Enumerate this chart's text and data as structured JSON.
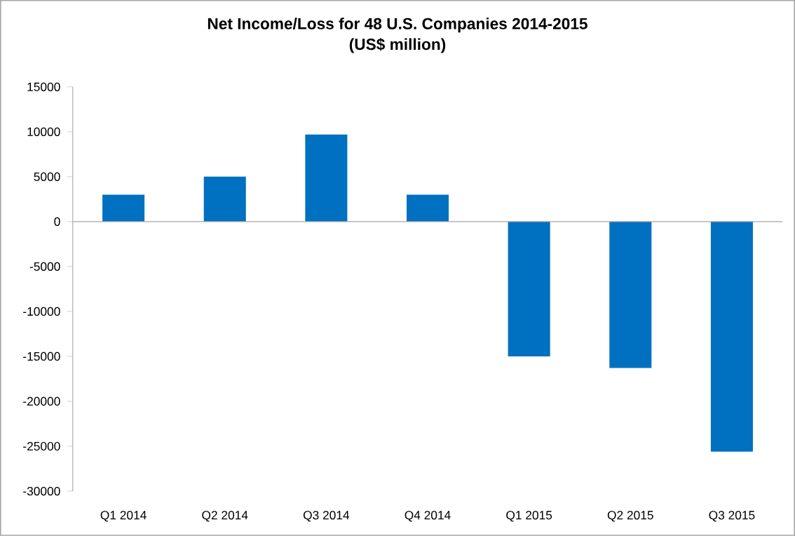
{
  "chart_data": {
    "type": "bar",
    "title": "Net Income/Loss for 48 U.S. Companies 2014-2015",
    "subtitle": "(US$ million)",
    "categories": [
      "Q1 2014",
      "Q2 2014",
      "Q3 2014",
      "Q4 2014",
      "Q1 2015",
      "Q2 2015",
      "Q3 2015"
    ],
    "values": [
      3000,
      5000,
      9700,
      3000,
      -15000,
      -16300,
      -25600
    ],
    "color": "#0070c0",
    "ylim": [
      -30000,
      15000
    ],
    "yticks": [
      -30000,
      -25000,
      -20000,
      -15000,
      -10000,
      -5000,
      0,
      5000,
      10000,
      15000
    ]
  }
}
